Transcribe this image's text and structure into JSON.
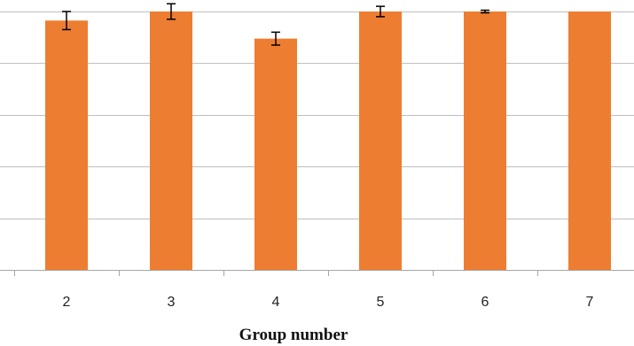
{
  "chart_data": {
    "type": "bar",
    "title": "",
    "xlabel": "Group number",
    "ylabel": "",
    "categories": [
      "2",
      "3",
      "4",
      "5",
      "6",
      "7"
    ],
    "values": [
      96.5,
      100,
      89.5,
      100,
      100,
      100
    ],
    "error": [
      3.5,
      3.0,
      2.5,
      2.0,
      0.5,
      0
    ],
    "ylim": [
      0,
      100
    ],
    "visible_ylim": [
      0,
      103
    ],
    "grid": true,
    "legend": "none",
    "colors": {
      "bar": "#ed7d31",
      "gridline": "#bfbfbf",
      "axis": "#a6a6a6",
      "error_bar": "#000000"
    }
  }
}
